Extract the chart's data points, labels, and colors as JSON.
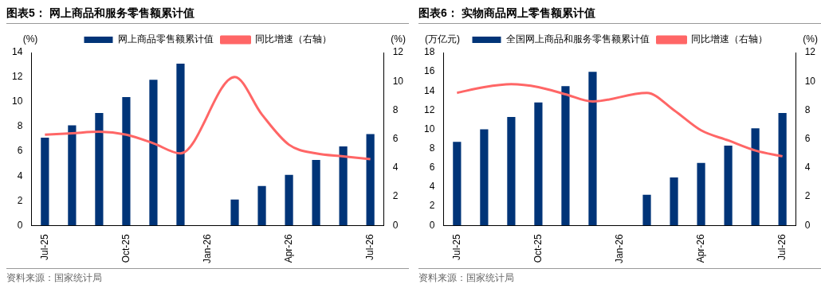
{
  "chart_data": [
    {
      "type": "bar",
      "title": "图表5：  网上商品和服务零售额累计值",
      "ylabel": "(%)",
      "y2label": "(%)",
      "categories": [
        "Jul-25",
        null,
        null,
        "Oct-25",
        null,
        null,
        "Jan-26",
        null,
        null,
        "Apr-26",
        null,
        null,
        "Jul-26"
      ],
      "series": [
        {
          "name": "网上商品零售额累计值",
          "color": "#003478",
          "values": [
            7.1,
            8.1,
            9.1,
            10.4,
            11.8,
            13.1,
            null,
            2.1,
            3.2,
            4.1,
            5.3,
            6.4,
            7.4
          ]
        },
        {
          "name": "同比增速（右轴）",
          "type": "line",
          "axis": "y2",
          "color": "#ff6666",
          "values": [
            6.3,
            6.4,
            6.5,
            6.3,
            5.7,
            5.0,
            null,
            10.3,
            7.7,
            5.6,
            5.0,
            4.8,
            4.6
          ]
        }
      ],
      "ylim": [
        0,
        14
      ],
      "yticks": [
        0,
        2,
        4,
        6,
        8,
        10,
        12,
        14
      ],
      "y2lim": [
        0,
        12
      ],
      "y2ticks": [
        0,
        2,
        4,
        6,
        8,
        10,
        12
      ],
      "marker": "none",
      "legend": "top",
      "annotations": [
        "资料来源：国家统计局"
      ]
    },
    {
      "type": "bar",
      "title": "图表6：  实物商品网上零售额累计值",
      "ylabel": "(万亿元)",
      "y2label": "(%)",
      "categories": [
        "Jul-25",
        null,
        null,
        "Oct-25",
        null,
        null,
        "Jan-26",
        null,
        null,
        "Apr-26",
        null,
        null,
        "Jul-26"
      ],
      "series": [
        {
          "name": "全国网上商品和服务零售额累计值",
          "color": "#003478",
          "values": [
            8.7,
            10.0,
            11.3,
            12.8,
            14.5,
            16.0,
            null,
            3.2,
            5.0,
            6.5,
            8.3,
            10.1,
            11.7
          ]
        },
        {
          "name": "同比增速（右轴）",
          "type": "line",
          "axis": "y2",
          "color": "#ff6666",
          "values": [
            9.2,
            9.6,
            9.8,
            9.6,
            9.1,
            8.6,
            null,
            9.2,
            8.0,
            6.6,
            5.9,
            5.2,
            4.8
          ]
        }
      ],
      "ylim": [
        0,
        18
      ],
      "yticks": [
        0,
        2,
        4,
        6,
        8,
        10,
        12,
        14,
        16,
        18
      ],
      "y2lim": [
        0,
        12
      ],
      "y2ticks": [
        0,
        2,
        4,
        6,
        8,
        10,
        12
      ],
      "marker": "none",
      "legend": "top",
      "annotations": [
        "资料来源：国家统计局"
      ]
    }
  ]
}
